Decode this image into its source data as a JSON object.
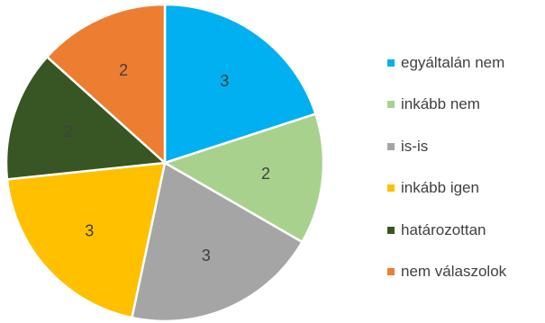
{
  "chart_data": {
    "type": "pie",
    "categories": [
      "egyáltalán nem",
      "inkább nem",
      "is-is",
      "inkább igen",
      "határozottan",
      "nem válaszolok"
    ],
    "values": [
      3,
      2,
      3,
      3,
      2,
      2
    ],
    "colors": [
      "#00B0F0",
      "#A9D18E",
      "#A5A5A5",
      "#FFC000",
      "#375623",
      "#ED7D31"
    ],
    "data_labels": [
      "3",
      "2",
      "3",
      "3",
      "2",
      "2"
    ],
    "legend_position": "right",
    "start_angle": "12 o'clock, clockwise"
  }
}
